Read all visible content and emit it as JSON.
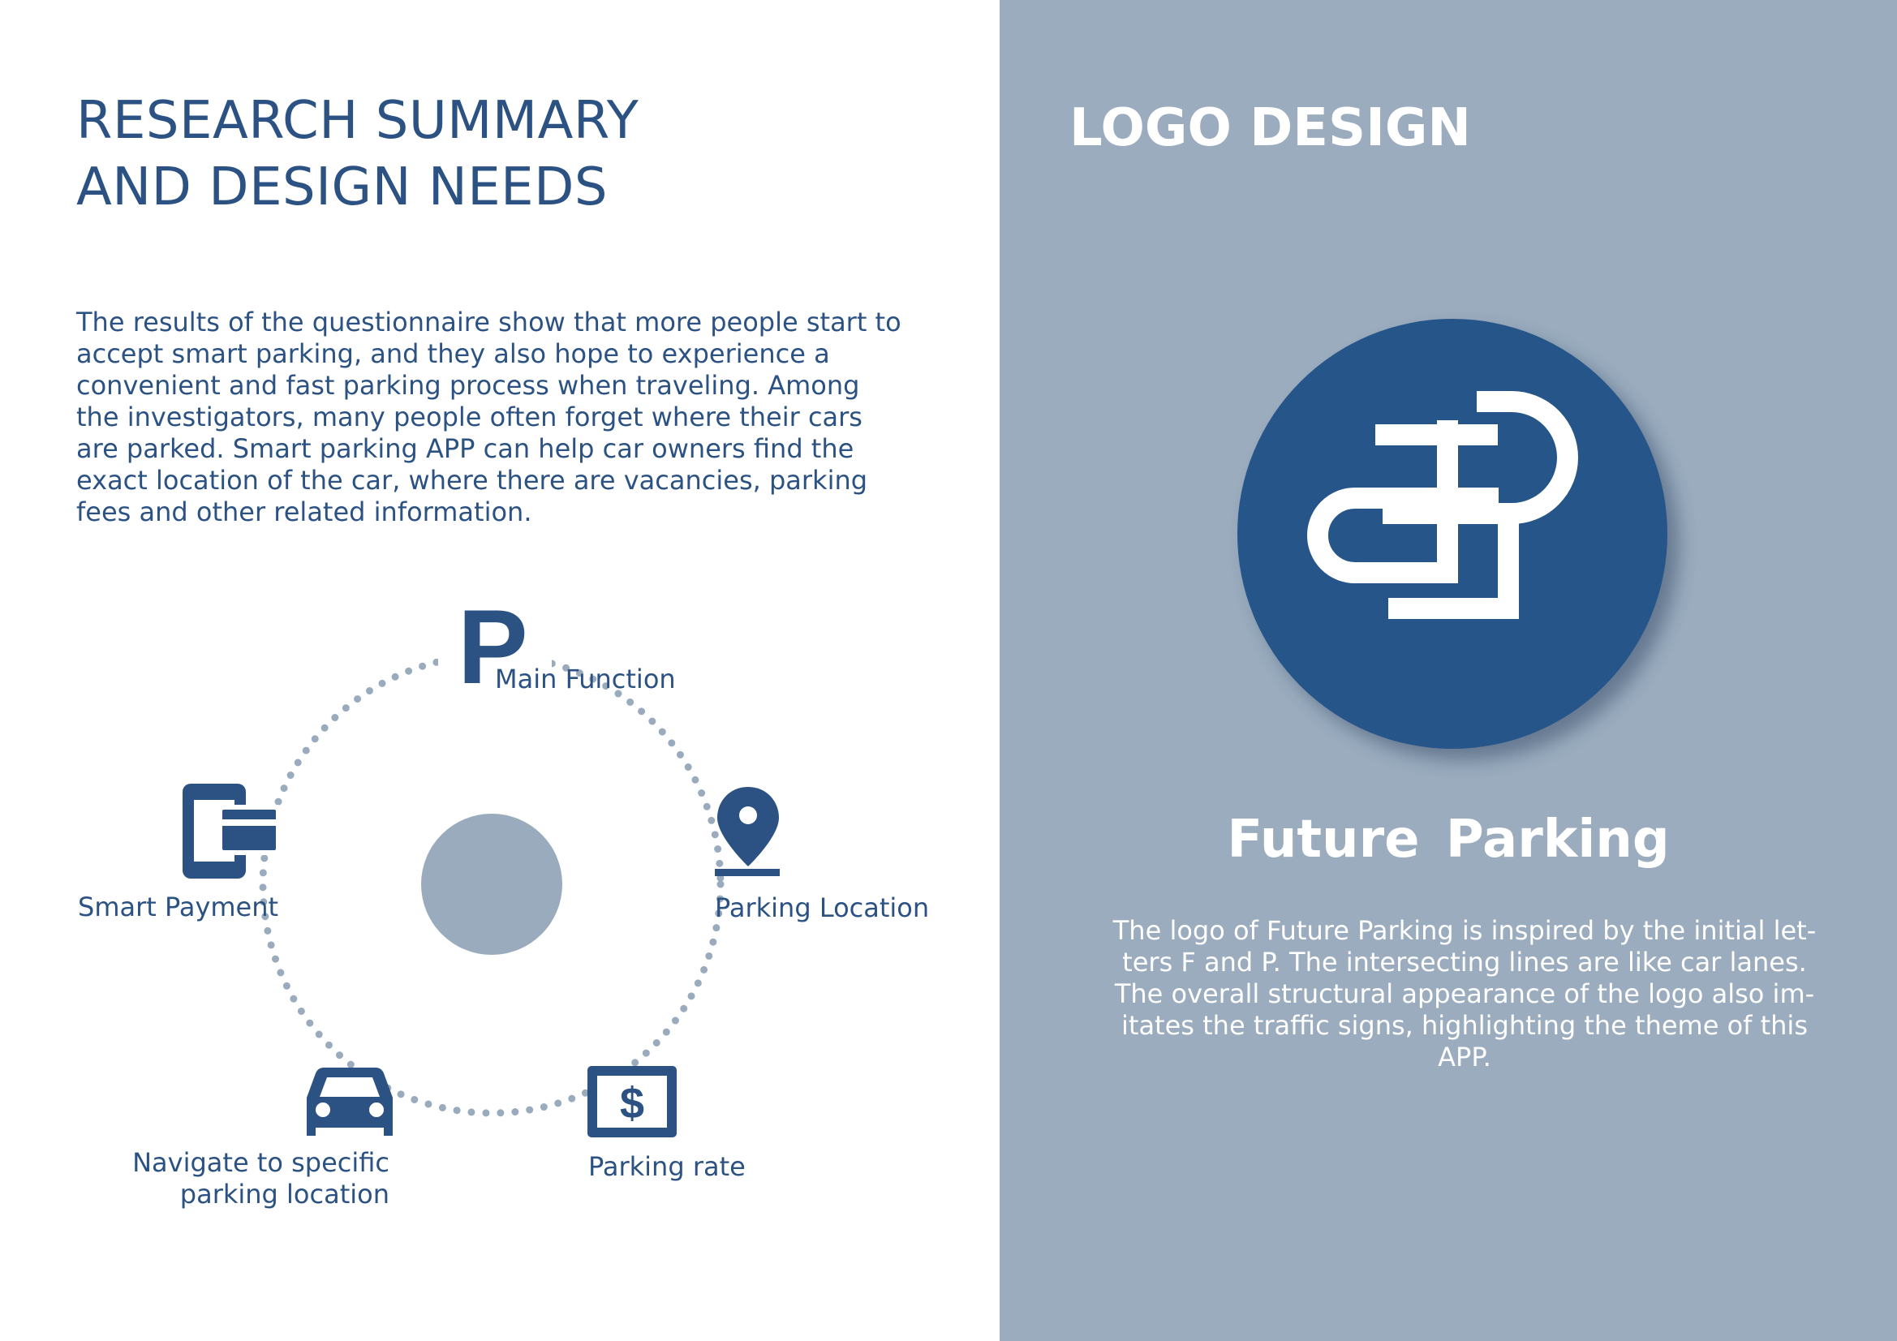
{
  "left": {
    "title_lines": [
      "RESEARCH SUMMARY",
      "AND DESIGN NEEDS"
    ],
    "body_lines": [
      "The results of the questionnaire show that more people start to",
      "accept smart parking, and they also hope to experience a",
      "convenient and fast parking process when traveling. Among",
      "the investigators, many people often forget where their cars",
      "are parked. Smart parking APP can help car owners find the",
      "exact location of the car, where there are vacancies, parking",
      "fees and other related information."
    ],
    "diagram": {
      "center_letter": "P",
      "main_label": "Main Function",
      "location_label": "Parking Location",
      "payment_label": "Smart Payment",
      "rate_label": "Parking rate",
      "navigate_lines": [
        "Navigate to specific",
        "parking location"
      ],
      "icons": {
        "location": "map-pin-icon",
        "payment": "phone-card-icon",
        "rate": "dollar-sign-icon",
        "navigate": "car-icon"
      }
    }
  },
  "right": {
    "title": "LOGO DESIGN",
    "brand_name": "Future  Parking",
    "desc_lines": [
      "The logo of Future Parking is inspired by the initial let-",
      "ters F and P. The intersecting lines are like car lanes.",
      "The overall structural appearance of the logo also im-",
      "itates the traffic signs, highlighting the theme of this",
      "APP."
    ]
  },
  "colors": {
    "primary": "#2b5283",
    "logo_blue": "#265589",
    "panel_gray": "#9aacbe",
    "dot_gray": "#99abbd",
    "white": "#ffffff"
  }
}
